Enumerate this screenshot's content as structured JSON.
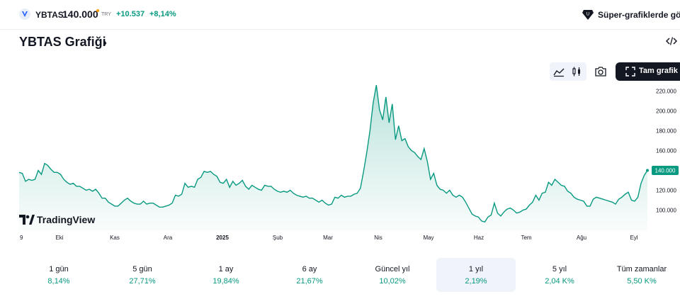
{
  "header": {
    "symbol": "YBTAS",
    "price": "140.000",
    "currency": "TRY",
    "change": "+10.537",
    "change_percent": "+8,14%",
    "super_charts_label": "Süper-grafiklerde görün",
    "logo_icon": "ybtas-logo-icon",
    "super_icon": "super-charts-icon"
  },
  "title": {
    "text": "YBTAS Grafiği",
    "chevron": "›"
  },
  "toolbar": {
    "fullscreen_label": "Tam grafik"
  },
  "brand": {
    "name": "TradingView"
  },
  "colors": {
    "accent": "#089981",
    "dark_button": "#131722",
    "price_badge": "#089981",
    "active_period_bg": "#f0f3fa"
  },
  "chart_data": {
    "type": "area",
    "title": "",
    "xlabel": "",
    "ylabel": "",
    "x_ticks": [
      "9",
      "Eki",
      "Kas",
      "Ara",
      "2025",
      "Şub",
      "Mar",
      "Nis",
      "May",
      "Haz",
      "Tem",
      "Ağu",
      "Eyl"
    ],
    "y_ticks": [
      "100.000",
      "120.000",
      "140.000",
      "160.000",
      "180.000",
      "200.000",
      "220.000"
    ],
    "ylim": [
      90,
      230
    ],
    "last_value_label": "140.000",
    "grid": false,
    "series": [
      {
        "values": [
          138,
          137,
          129,
          131,
          130,
          131,
          140,
          136,
          147,
          145,
          141,
          138,
          138,
          136,
          131,
          128,
          126,
          127,
          124,
          124,
          122,
          120,
          121,
          119,
          121,
          117,
          112,
          112,
          108,
          106,
          104,
          104,
          107,
          110,
          112,
          109,
          107,
          106,
          106,
          109,
          106,
          107,
          107,
          105,
          103,
          103,
          104,
          105,
          107,
          115,
          114,
          116,
          127,
          123,
          124,
          123,
          131,
          133,
          139,
          138,
          139,
          136,
          134,
          128,
          127,
          131,
          123,
          129,
          125,
          127,
          130,
          124,
          121,
          125,
          123,
          121,
          120,
          125,
          124,
          124,
          121,
          119,
          118,
          119,
          118,
          120,
          117,
          115,
          114,
          113,
          114,
          112,
          112,
          110,
          108,
          110,
          107,
          105,
          106,
          113,
          112,
          115,
          113,
          114,
          114,
          116,
          117,
          122,
          139,
          158,
          180,
          208,
          226,
          201,
          191,
          214,
          188,
          207,
          171,
          185,
          170,
          172,
          164,
          160,
          158,
          154,
          151,
          162,
          149,
          131,
          137,
          125,
          121,
          120,
          117,
          120,
          115,
          113,
          115,
          113,
          108,
          102,
          96,
          94,
          93,
          89,
          88,
          93,
          95,
          107,
          97,
          94,
          98,
          101,
          102,
          100,
          97,
          98,
          100,
          101,
          105,
          108,
          115,
          110,
          117,
          118,
          128,
          125,
          131,
          128,
          125,
          124,
          119,
          117,
          113,
          111,
          110,
          109,
          104,
          104,
          111,
          113,
          112,
          111,
          110,
          109,
          108,
          106,
          111,
          113,
          116,
          118,
          110,
          109,
          113,
          127,
          135,
          140
        ]
      }
    ]
  },
  "periods": [
    {
      "label": "1 gün",
      "value": "8,14%"
    },
    {
      "label": "5 gün",
      "value": "27,71%"
    },
    {
      "label": "1 ay",
      "value": "19,84%"
    },
    {
      "label": "6 ay",
      "value": "21,67%"
    },
    {
      "label": "Güncel yıl",
      "value": "10,02%"
    },
    {
      "label": "1 yıl",
      "value": "2,19%"
    },
    {
      "label": "5 yıl",
      "value": "2,04 K%"
    },
    {
      "label": "Tüm zamanlar",
      "value": "5,50 K%"
    }
  ],
  "active_period": "1 yıl"
}
